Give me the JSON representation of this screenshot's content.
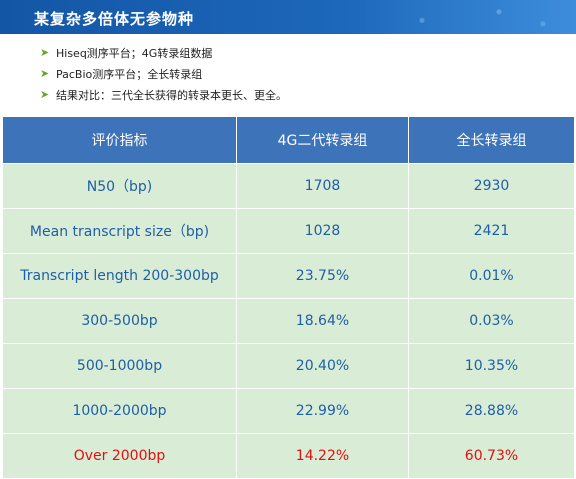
{
  "header": {
    "title": "某复杂多倍体无参物种"
  },
  "bullets": [
    {
      "icon": "arrow-bullet-icon",
      "text": "Hiseq测序平台；4G转录组数据"
    },
    {
      "icon": "arrow-bullet-icon",
      "text": "PacBio测序平台；全长转录组"
    },
    {
      "icon": "arrow-bullet-icon",
      "text": "结果对比：三代全长获得的转录本更长、更全。"
    }
  ],
  "table": {
    "headers": [
      "评价指标",
      "4G二代转录组",
      "全长转录组"
    ],
    "rows": [
      {
        "metric": "N50（bp)",
        "ngs": "1708",
        "full": "2930"
      },
      {
        "metric": "Mean transcript size（bp)",
        "ngs": "1028",
        "full": "2421"
      },
      {
        "metric": "Transcript length 200-300bp",
        "ngs": "23.75%",
        "full": "0.01%"
      },
      {
        "metric": "300-500bp",
        "ngs": "18.64%",
        "full": "0.03%"
      },
      {
        "metric": "500-1000bp",
        "ngs": "20.40%",
        "full": "10.35%"
      },
      {
        "metric": "1000-2000bp",
        "ngs": "22.99%",
        "full": "28.88%"
      },
      {
        "metric": "Over 2000bp",
        "ngs": "14.22%",
        "full": "60.73%"
      }
    ]
  },
  "colors": {
    "header_bg": "#3d73b8",
    "cell_bg": "#d9ecd5",
    "cell_text": "#1f5fa8",
    "highlight_text": "#e01010",
    "banner": "#1456a6"
  }
}
